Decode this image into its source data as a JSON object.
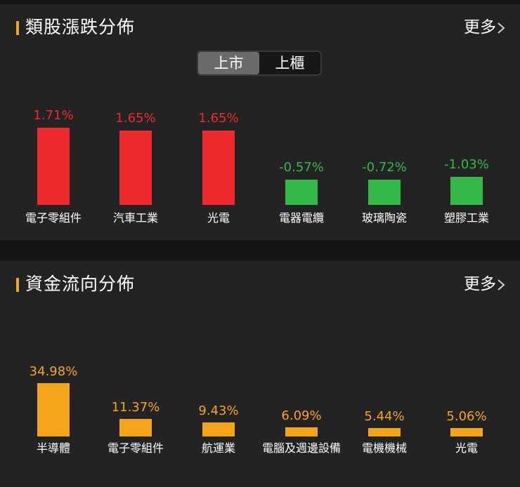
{
  "colors": {
    "up": "#ee2a2e",
    "down": "#35b84a",
    "flow": "#f6a41a",
    "accent": "#f6a41a",
    "card_bg": "#232323",
    "page_bg": "#151515"
  },
  "sector_perf": {
    "title": "類股漲跌分佈",
    "more_label": "更多",
    "more_icon": "chevron-right-icon",
    "tabs": [
      {
        "label": "上市",
        "selected": true
      },
      {
        "label": "上櫃",
        "selected": false
      }
    ],
    "chart_data": {
      "type": "bar",
      "categories": [
        "電子零組件",
        "汽車工業",
        "光電",
        "電器電纜",
        "玻璃陶瓷",
        "塑膠工業"
      ],
      "values": [
        1.71,
        1.65,
        1.65,
        -0.57,
        -0.72,
        -1.03
      ],
      "labels": [
        "1.71%",
        "1.65%",
        "1.65%",
        "-0.57%",
        "-0.72%",
        "-1.03%"
      ],
      "unit": "%"
    }
  },
  "capital_flow": {
    "title": "資金流向分佈",
    "more_label": "更多",
    "more_icon": "chevron-right-icon",
    "chart_data": {
      "type": "bar",
      "categories": [
        "半導體",
        "電子零組件",
        "航運業",
        "電腦及週邊設備",
        "電機機械",
        "光電"
      ],
      "values": [
        34.98,
        11.37,
        9.43,
        6.09,
        5.44,
        5.06
      ],
      "labels": [
        "34.98%",
        "11.37%",
        "9.43%",
        "6.09%",
        "5.44%",
        "5.06%"
      ],
      "unit": "%"
    }
  }
}
